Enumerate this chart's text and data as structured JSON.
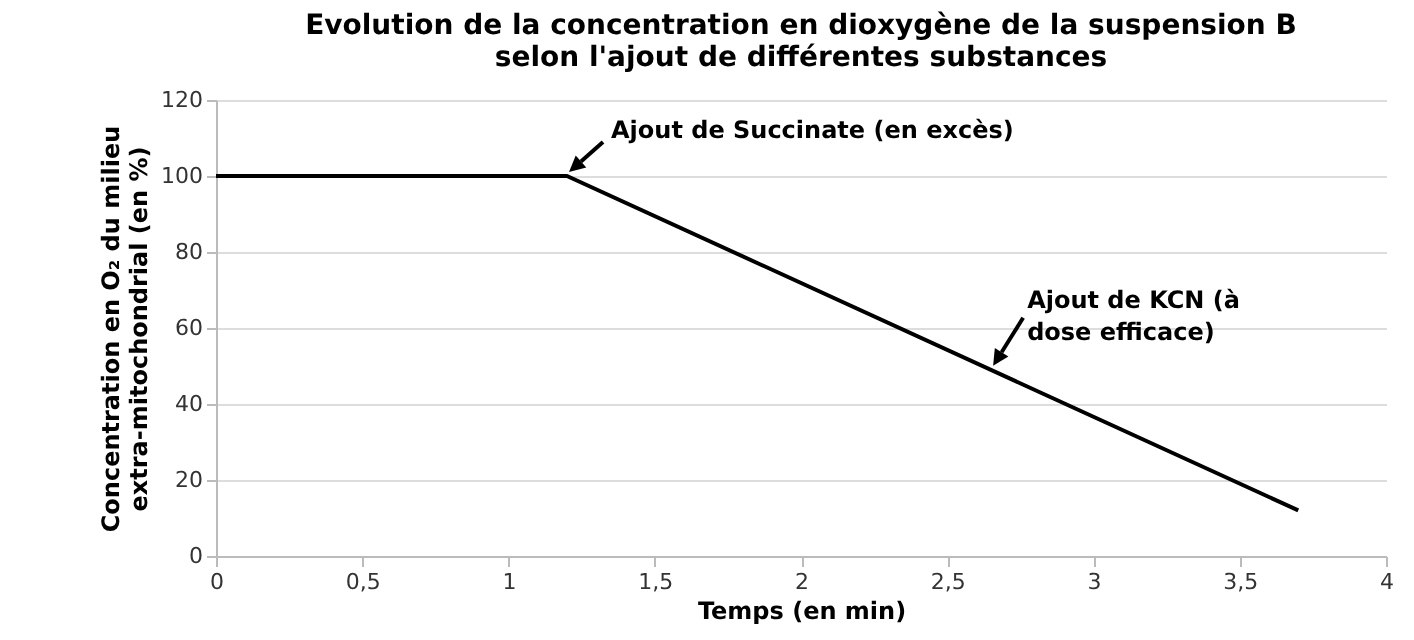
{
  "chart_data": {
    "type": "line",
    "title": "Evolution de la concentration en dioxygène de la suspension B selon l'ajout de différentes substances",
    "xlabel": "Temps (en min)",
    "ylabel": "Concentration en O₂ du milieu extra-mitochondrial (en %)",
    "x": [
      0,
      1.2,
      3.7
    ],
    "series": [
      {
        "color": "#000000",
        "values": [
          100,
          100,
          12
        ]
      }
    ],
    "xlim": [
      0,
      4
    ],
    "xticks": [
      0,
      {
        "value": 0.5,
        "label": "0,5"
      },
      1,
      {
        "value": 1.5,
        "label": "1,5"
      },
      2,
      {
        "value": 2.5,
        "label": "2,5"
      },
      3,
      {
        "value": 3.5,
        "label": "3,5"
      },
      4
    ],
    "ylim": [
      0,
      120
    ],
    "yticks": [
      0,
      20,
      40,
      60,
      80,
      100,
      120
    ],
    "grid": "y",
    "marker": "none",
    "line_style": "solid",
    "annotations": [
      {
        "text": "Ajout de Succinate (en excès)",
        "x": 1.2,
        "y": 100
      },
      {
        "text": "Ajout de KCN (à dose efficace)",
        "x": 2.65,
        "y": 49
      }
    ]
  }
}
